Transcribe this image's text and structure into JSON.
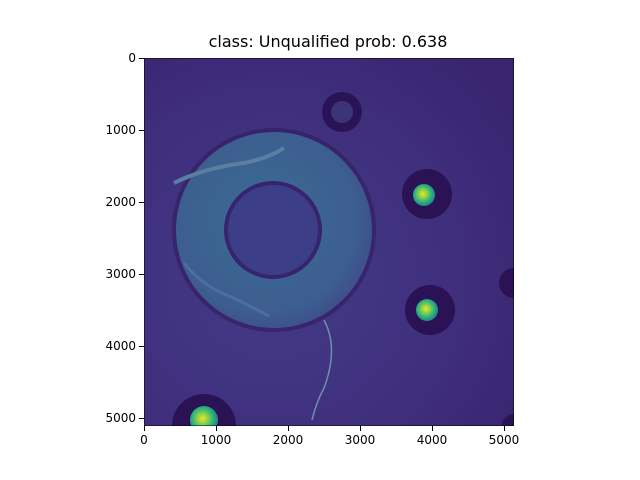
{
  "title": "class: Unqualified   prob: 0.638",
  "axes": {
    "x_ticks": [
      "0",
      "1000",
      "2000",
      "3000",
      "4000",
      "5000"
    ],
    "y_ticks": [
      "0",
      "1000",
      "2000",
      "3000",
      "4000",
      "5000"
    ]
  },
  "colormap": "viridis"
}
